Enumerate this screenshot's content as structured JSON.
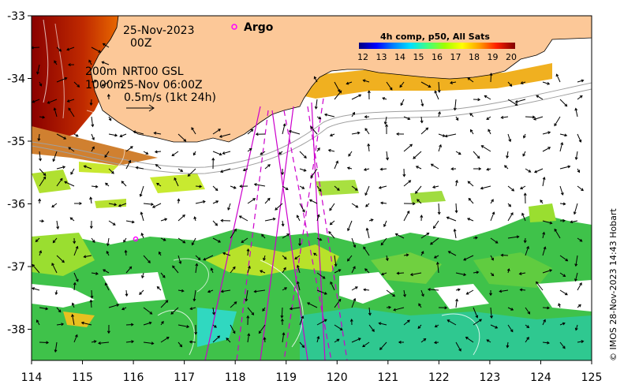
{
  "map": {
    "date_line": "25-Nov-2023",
    "time_line": "00Z",
    "depth_line_1": "200m",
    "product_line_1": "NRT00 GSL",
    "depth_line_2": "1000m",
    "product_line_2": "25-Nov 06:00Z",
    "scale_label": "0.5m/s (1kt 24h)",
    "argo_label": "Argo",
    "credit": "© IMOS 28-Nov-2023 14:43 Hobart",
    "colorbar": {
      "title": "4h comp, p50, All Sats",
      "ticks": [
        "12",
        "13",
        "14",
        "15",
        "16",
        "17",
        "18",
        "19",
        "20"
      ],
      "colors": [
        "#00007f",
        "#0000ff",
        "#0080ff",
        "#00ffff",
        "#40ff40",
        "#80ff00",
        "#ffff00",
        "#ff8000",
        "#ff0000",
        "#800000"
      ]
    },
    "x_ticks": [
      "114",
      "115",
      "116",
      "117",
      "118",
      "119",
      "120",
      "121",
      "122",
      "123",
      "124",
      "125"
    ],
    "y_ticks": [
      "-33",
      "-34",
      "-35",
      "-36",
      "-37",
      "-38"
    ],
    "land_color": "#fcc898"
  }
}
